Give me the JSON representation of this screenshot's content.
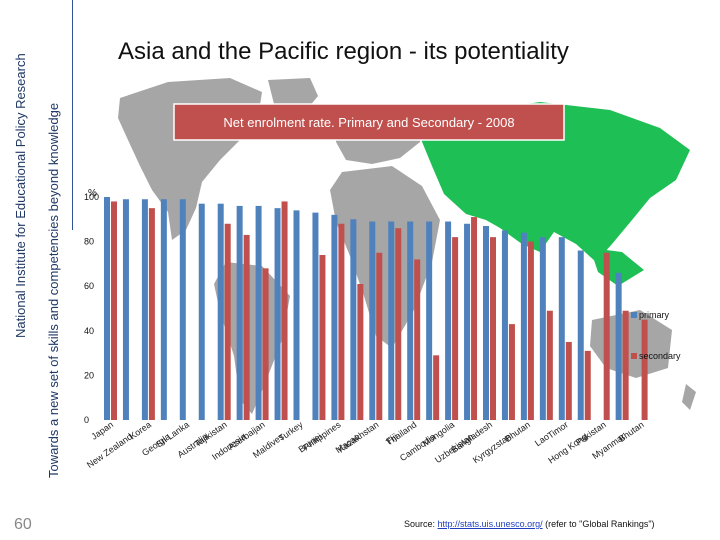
{
  "sidebar": {
    "line1": "National Institute for Educational Policy Research",
    "line2": "Towards a new set of skills and competencies beyond knowledge"
  },
  "page": {
    "title": "Asia and the Pacific region  -  its potentiality",
    "number": "60"
  },
  "footer": {
    "source_label": "Source:",
    "source_link": "http://stats.uis.unesco.org/",
    "source_note": "(refer to \"Global Rankings\")"
  },
  "colors": {
    "primary": "#4f81bd",
    "secondary": "#c0504d",
    "banner": "#c0504d",
    "map_land": "#a6a6a6",
    "map_asia": "#1ebf55"
  },
  "chart_data": {
    "type": "bar",
    "title": "Net enrolment rate. Primary and Secondary - 2008",
    "ylabel": "%",
    "ylim": [
      0,
      100
    ],
    "yticks": [
      0,
      20,
      40,
      60,
      80,
      100
    ],
    "grid": false,
    "legend_placement": "right",
    "categories": [
      "Japan",
      "New Zealand",
      "Korea",
      "Georgia",
      "Sri Lanka",
      "Australia",
      "Tajikistan",
      "Indonesia",
      "Azerbaijan",
      "Maldives",
      "Turkey",
      "Brunei",
      "Philippines",
      "Macao",
      "Kazakhstan",
      "Fiji",
      "Thailand",
      "Cambodia",
      "Mongolia",
      "Uzbekistan",
      "Bangladesh",
      "Kyrgyzstan",
      "Bhutan",
      "Lao",
      "Timor",
      "Hong Kong",
      "Pakistan",
      "Myanmar",
      "Bhutan"
    ],
    "series": [
      {
        "name": "primary",
        "values": [
          100,
          99,
          99,
          99,
          99,
          97,
          97,
          96,
          96,
          95,
          94,
          93,
          92,
          90,
          89,
          89,
          89,
          89,
          89,
          88,
          87,
          85,
          84,
          82,
          82,
          76,
          null,
          66,
          null
        ]
      },
      {
        "name": "secondary",
        "values": [
          98,
          null,
          95,
          null,
          null,
          null,
          88,
          83,
          68,
          98,
          null,
          74,
          88,
          61,
          75,
          86,
          72,
          29,
          82,
          91,
          82,
          43,
          80,
          49,
          35,
          31,
          75,
          49,
          45
        ]
      }
    ]
  }
}
